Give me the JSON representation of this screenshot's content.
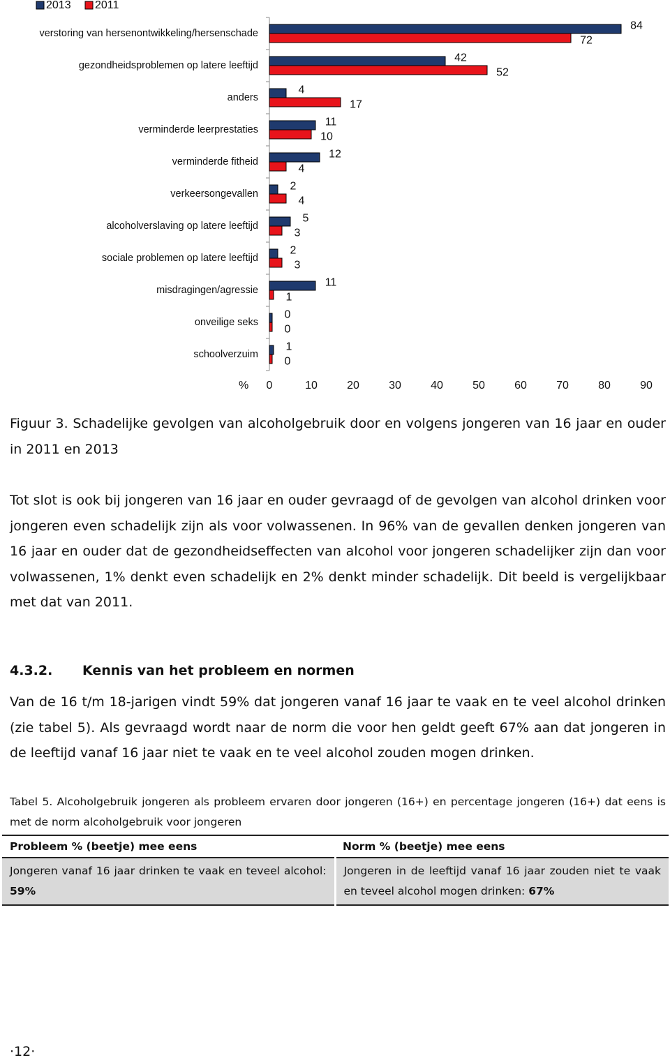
{
  "chart_data": {
    "type": "bar",
    "orientation": "horizontal",
    "categories": [
      "verstoring van hersenontwikkeling/hersenschade",
      "gezondheidsproblemen op latere leeftijd",
      "anders",
      "verminderde leerprestaties",
      "verminderde fitheid",
      "verkeersongevallen",
      "alcoholverslaving op latere leeftijd",
      "sociale problemen op latere leeftijd",
      "misdragingen/agressie",
      "onveilige seks",
      "schoolverzuim"
    ],
    "series": [
      {
        "name": "2013",
        "color": "#1f3a6e",
        "values": [
          84,
          42,
          4,
          11,
          12,
          2,
          5,
          2,
          11,
          0,
          1
        ]
      },
      {
        "name": "2011",
        "color": "#e8141b",
        "values": [
          72,
          52,
          17,
          10,
          4,
          4,
          3,
          3,
          1,
          0,
          0
        ]
      }
    ],
    "x_label": "%",
    "xlim": [
      0,
      90
    ],
    "xticks": [
      0,
      10,
      20,
      30,
      40,
      50,
      60,
      70,
      80,
      90
    ],
    "grid": false,
    "legend": "top-left"
  },
  "caption": "Figuur 3. Schadelijke gevolgen van alcoholgebruik door en volgens jongeren van 16 jaar en ouder in 2011 en 2013",
  "paragraph_1": "Tot slot is ook bij jongeren van 16 jaar en ouder gevraagd of de gevolgen van alcohol drinken voor jongeren even schadelijk zijn als voor volwassenen. In 96% van de gevallen denken jongeren van 16 jaar en ouder dat de gezondheidseffecten van alcohol voor jongeren schadelijker zijn dan voor volwassenen, 1% denkt even schadelijk en 2% denkt minder schadelijk. Dit beeld is vergelijkbaar met dat van 2011.",
  "heading": {
    "number": "4.3.2.",
    "title": "Kennis van het probleem en normen"
  },
  "paragraph_2": "Van de 16 t/m 18-jarigen vindt 59% dat jongeren vanaf 16 jaar te vaak en te veel alcohol drinken (zie tabel 5). Als gevraagd wordt naar de norm die voor hen geldt geeft 67% aan dat jongeren in de leeftijd vanaf 16 jaar niet te vaak en te veel alcohol zouden mogen drinken.",
  "table_caption": "Tabel 5. Alcoholgebruik jongeren als probleem ervaren door jongeren (16+) en percentage jongeren (16+) dat eens is met de norm alcoholgebruik voor jongeren",
  "table": {
    "header": [
      "Probleem % (beetje) mee eens",
      "Norm % (beetje) mee eens"
    ],
    "rows": [
      [
        {
          "text": "Jongeren vanaf 16 jaar drinken te vaak en teveel alcohol:",
          "bold": "59%"
        },
        {
          "text": "Jongeren in de leeftijd vanaf 16 jaar zouden niet te vaak en teveel alcohol mogen drinken:",
          "bold": "67%"
        }
      ]
    ]
  },
  "page_number": "·12·"
}
